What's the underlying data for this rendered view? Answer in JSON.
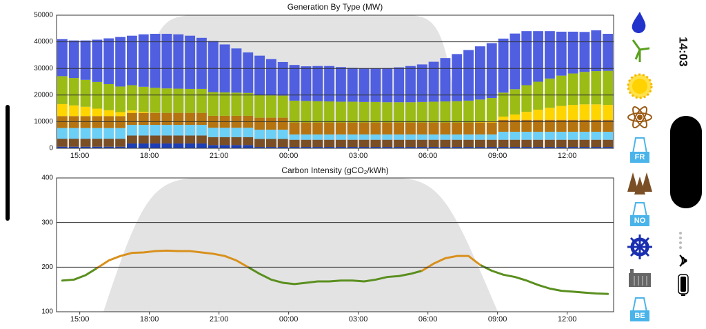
{
  "chart_data": [
    {
      "type": "stacked-bar",
      "title": "Generation By Type (MW)",
      "categories": [
        null,
        null,
        "15:00",
        null,
        null,
        null,
        null,
        null,
        "18:00",
        null,
        null,
        null,
        null,
        null,
        "21:00",
        null,
        null,
        null,
        null,
        null,
        "00:00",
        null,
        null,
        null,
        null,
        null,
        "03:00",
        null,
        null,
        null,
        null,
        null,
        "06:00",
        null,
        null,
        null,
        null,
        null,
        "09:00",
        null,
        null,
        null,
        null,
        null,
        "12:00",
        null,
        null,
        null
      ],
      "series": [
        {
          "color": "#1c3fb8",
          "values": [
            600,
            600,
            600,
            600,
            600,
            600,
            1800,
            1800,
            1800,
            1800,
            1800,
            1800,
            1800,
            1200,
            1200,
            1200,
            1200,
            500,
            500,
            500,
            500,
            500,
            500,
            500,
            500,
            500,
            500,
            500,
            500,
            500,
            500,
            500,
            500,
            500,
            500,
            500,
            500,
            500,
            500,
            500,
            500,
            500,
            500,
            500,
            500,
            500,
            500,
            500
          ]
        },
        {
          "color": "#7a4f26",
          "values": [
            3000,
            3000,
            3000,
            3000,
            3000,
            3000,
            3000,
            3000,
            3000,
            3000,
            3000,
            3000,
            3000,
            3000,
            3000,
            3000,
            3000,
            3000,
            3000,
            3000,
            2700,
            2700,
            2700,
            2700,
            2700,
            2700,
            2700,
            2700,
            2700,
            2700,
            2700,
            2700,
            2700,
            2700,
            2700,
            2700,
            2700,
            2700,
            2700,
            2700,
            2700,
            2700,
            2700,
            2700,
            2700,
            2700,
            2700,
            2700
          ]
        },
        {
          "color": "#6ccff6",
          "values": [
            4000,
            4000,
            4000,
            4000,
            4000,
            4000,
            4000,
            4000,
            4000,
            4000,
            4000,
            4000,
            4000,
            3500,
            3500,
            3500,
            3500,
            3500,
            3500,
            3500,
            2000,
            2000,
            2000,
            2000,
            2000,
            2000,
            2000,
            2000,
            2000,
            2000,
            2000,
            2000,
            2000,
            2000,
            2000,
            2000,
            2000,
            2000,
            3000,
            3000,
            3000,
            3000,
            3000,
            3000,
            3000,
            3000,
            3000,
            3000
          ]
        },
        {
          "color": "#b5740f",
          "values": [
            4500,
            4500,
            4500,
            4500,
            4500,
            4500,
            4500,
            4500,
            4500,
            4500,
            4500,
            4500,
            4500,
            4500,
            4500,
            4500,
            4500,
            4500,
            4500,
            4500,
            4500,
            4500,
            4500,
            4500,
            4500,
            4500,
            4500,
            4500,
            4500,
            4500,
            4500,
            4500,
            4500,
            4500,
            4500,
            4500,
            4500,
            4500,
            4500,
            4500,
            4500,
            4500,
            4500,
            4500,
            4500,
            4500,
            4500,
            4500
          ]
        },
        {
          "color": "#ffd500",
          "values": [
            4500,
            4000,
            3500,
            2800,
            2200,
            1500,
            900,
            400,
            100,
            0,
            0,
            0,
            0,
            0,
            0,
            0,
            0,
            0,
            0,
            0,
            0,
            0,
            0,
            0,
            0,
            0,
            0,
            0,
            0,
            0,
            0,
            0,
            0,
            0,
            0,
            0,
            200,
            600,
            1200,
            2000,
            3000,
            3800,
            4500,
            5200,
            5600,
            5800,
            5800,
            5600
          ]
        },
        {
          "color": "#9bbb15",
          "values": [
            10500,
            10300,
            10100,
            10000,
            9800,
            9600,
            9500,
            9400,
            9300,
            9200,
            9100,
            9000,
            9000,
            8900,
            8800,
            8700,
            8600,
            8500,
            8400,
            8300,
            8200,
            8100,
            8000,
            7900,
            7800,
            7800,
            7700,
            7700,
            7600,
            7600,
            7600,
            7700,
            7800,
            7900,
            8000,
            8200,
            8400,
            8600,
            9000,
            9500,
            10000,
            10500,
            11000,
            11400,
            11800,
            12200,
            12500,
            12800
          ]
        },
        {
          "color": "#4f5fe0",
          "values": [
            13900,
            14100,
            14800,
            15900,
            17200,
            18600,
            18600,
            19700,
            20300,
            20500,
            20400,
            20000,
            19200,
            19200,
            18000,
            16600,
            15200,
            14800,
            13600,
            12600,
            13400,
            13000,
            13200,
            13300,
            13000,
            12700,
            12600,
            12600,
            12800,
            13100,
            13600,
            14100,
            15000,
            16300,
            17700,
            19000,
            20000,
            20600,
            20300,
            20900,
            20300,
            19000,
            17800,
            16500,
            15700,
            15000,
            15300,
            13900
          ]
        }
      ],
      "ylim": [
        0,
        50000
      ],
      "yticks": [
        0,
        10000,
        20000,
        30000,
        40000,
        50000
      ],
      "grid": true
    },
    {
      "type": "line",
      "title": "Carbon Intensity (gCO₂/kWh)",
      "categories": [
        null,
        null,
        "15:00",
        null,
        null,
        null,
        null,
        null,
        "18:00",
        null,
        null,
        null,
        null,
        null,
        "21:00",
        null,
        null,
        null,
        null,
        null,
        "00:00",
        null,
        null,
        null,
        null,
        null,
        "03:00",
        null,
        null,
        null,
        null,
        null,
        "06:00",
        null,
        null,
        null,
        null,
        null,
        "09:00",
        null,
        null,
        null,
        null,
        null,
        "12:00",
        null,
        null,
        null
      ],
      "series": [
        {
          "color": "#5a8f1e",
          "values": [
            170,
            172,
            182,
            198,
            null,
            null,
            null,
            null,
            null,
            null,
            null,
            null,
            null,
            null,
            null,
            null,
            200,
            185,
            172,
            165,
            162,
            165,
            168,
            168,
            170,
            170,
            168,
            172,
            178,
            180,
            185,
            192,
            null,
            null,
            null,
            null,
            205,
            192,
            183,
            178,
            170,
            160,
            152,
            147,
            145,
            143,
            141,
            140
          ]
        },
        {
          "color": "#d9901c",
          "values": [
            null,
            null,
            null,
            198,
            215,
            225,
            232,
            233,
            236,
            237,
            236,
            236,
            233,
            230,
            225,
            215,
            200,
            null,
            null,
            null,
            null,
            null,
            null,
            null,
            null,
            null,
            null,
            null,
            null,
            null,
            null,
            192,
            208,
            220,
            225,
            225,
            205,
            null,
            null,
            null,
            null,
            null,
            null,
            null,
            null,
            null,
            null,
            null
          ]
        }
      ],
      "ylim": [
        100,
        400
      ],
      "yticks": [
        100,
        200,
        300,
        400
      ],
      "grid": true
    }
  ],
  "sidebar": {
    "labels": [
      "FR",
      "NO",
      "BE"
    ]
  },
  "status_bar": {
    "time": "14:03"
  }
}
